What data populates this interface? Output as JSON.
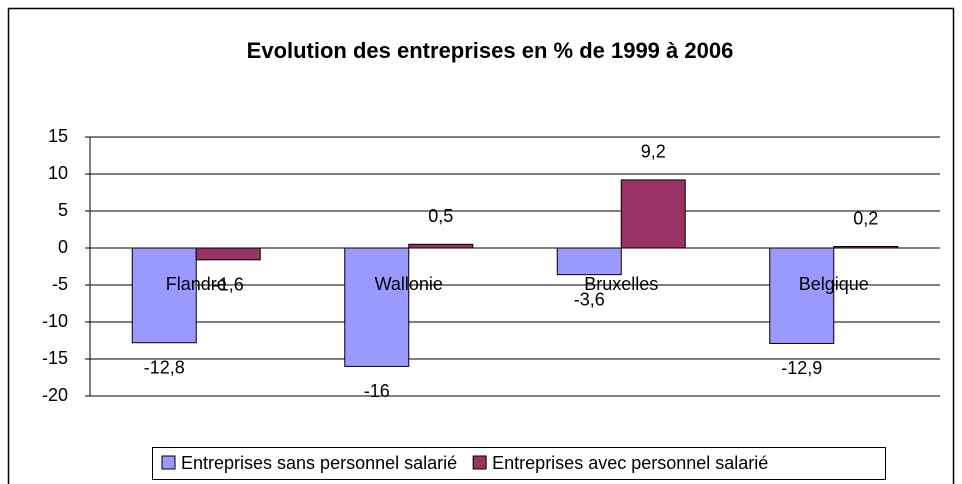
{
  "chart_data": {
    "type": "bar",
    "title": "Evolution des entreprises en % de 1999 à 2006",
    "categories": [
      "Flandre",
      "Wallonie",
      "Bruxelles",
      "Belgique"
    ],
    "series": [
      {
        "name": "Entreprises sans personnel salarié",
        "color": "#9999ff",
        "values": [
          -12.8,
          -16,
          -3.6,
          -12.9
        ],
        "value_labels": [
          "-12,8",
          "-16",
          "-3,6",
          "-12,9"
        ]
      },
      {
        "name": "Entreprises avec personnel salarié",
        "color": "#993366",
        "values": [
          -1.6,
          0.5,
          9.2,
          0.2
        ],
        "value_labels": [
          "-1,6",
          "0,5",
          "9,2",
          "0,2"
        ]
      }
    ],
    "ylim": [
      -20,
      15
    ],
    "yticks": [
      -20,
      -15,
      -10,
      -5,
      0,
      5,
      10,
      15
    ],
    "grid": true,
    "legend": "bottom"
  }
}
